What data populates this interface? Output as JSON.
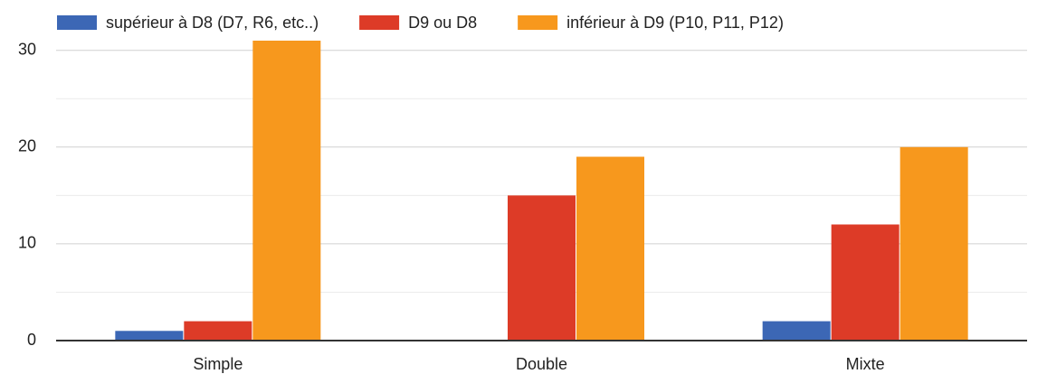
{
  "chart_data": {
    "type": "bar",
    "categories": [
      "Simple",
      "Double",
      "Mixte"
    ],
    "series": [
      {
        "name": "supérieur à D8 (D7, R6, etc..)",
        "color": "#3c67b5",
        "values": [
          1,
          0,
          2
        ]
      },
      {
        "name": "D9 ou D8",
        "color": "#dd3b27",
        "values": [
          2,
          15,
          12
        ]
      },
      {
        "name": "inférieur à D9 (P10, P11, P12)",
        "color": "#f7981d",
        "values": [
          31,
          19,
          20
        ]
      }
    ],
    "ylim": [
      0,
      31
    ],
    "yticks": [
      0,
      10,
      20,
      30
    ],
    "minor_yticks": [
      5,
      15,
      25
    ],
    "grid": true,
    "legend": "top"
  }
}
